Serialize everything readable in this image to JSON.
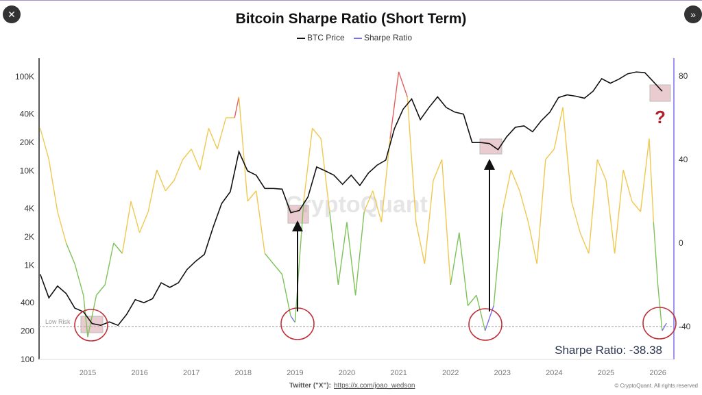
{
  "nav": {
    "close_icon": "close-icon",
    "next_icon": "chevron-double-right-icon"
  },
  "chart_data": {
    "type": "line",
    "title": "Bitcoin Sharpe Ratio (Short Term)",
    "legend": [
      "BTC Price",
      "Sharpe Ratio"
    ],
    "legend_placement": "top-center",
    "x_ticks": [
      "2015",
      "2016",
      "2017",
      "2018",
      "2019",
      "2020",
      "2021",
      "2022",
      "2023",
      "2024",
      "2025",
      "2026"
    ],
    "y_left": {
      "scale": "log",
      "ticks": [
        "100",
        "200",
        "400",
        "1K",
        "2K",
        "4K",
        "10K",
        "20K",
        "40K",
        "100K"
      ],
      "range": [
        100,
        200000
      ]
    },
    "y_right": {
      "ticks": [
        "80",
        "40",
        "0",
        "-40"
      ],
      "range": [
        -55,
        89
      ]
    },
    "colors": {
      "price": "#111111",
      "high": "#e06060",
      "mid": "#f0c850",
      "low": "#7cc35a",
      "extreme": "#7a6ef0",
      "axis_right": "#7a6ef0",
      "annotation": "#c0303a"
    },
    "series": [
      {
        "name": "BTC Price",
        "points": [
          [
            "2014-02",
            800
          ],
          [
            "2014-04",
            450
          ],
          [
            "2014-06",
            600
          ],
          [
            "2014-08",
            500
          ],
          [
            "2014-10",
            350
          ],
          [
            "2014-12",
            320
          ],
          [
            "2015-02",
            240
          ],
          [
            "2015-04",
            230
          ],
          [
            "2015-06",
            250
          ],
          [
            "2015-08",
            230
          ],
          [
            "2015-10",
            300
          ],
          [
            "2015-12",
            430
          ],
          [
            "2016-02",
            400
          ],
          [
            "2016-04",
            440
          ],
          [
            "2016-06",
            650
          ],
          [
            "2016-08",
            580
          ],
          [
            "2016-10",
            650
          ],
          [
            "2016-12",
            900
          ],
          [
            "2017-02",
            1100
          ],
          [
            "2017-04",
            1300
          ],
          [
            "2017-06",
            2500
          ],
          [
            "2017-08",
            4500
          ],
          [
            "2017-10",
            6000
          ],
          [
            "2017-12",
            16000
          ],
          [
            "2018-02",
            10000
          ],
          [
            "2018-04",
            9000
          ],
          [
            "2018-06",
            6500
          ],
          [
            "2018-08",
            6500
          ],
          [
            "2018-10",
            6400
          ],
          [
            "2018-12",
            3600
          ],
          [
            "2019-02",
            3800
          ],
          [
            "2019-04",
            5300
          ],
          [
            "2019-06",
            11000
          ],
          [
            "2019-08",
            10000
          ],
          [
            "2019-10",
            9000
          ],
          [
            "2019-12",
            7200
          ],
          [
            "2020-02",
            9000
          ],
          [
            "2020-04",
            7000
          ],
          [
            "2020-06",
            9500
          ],
          [
            "2020-08",
            11500
          ],
          [
            "2020-10",
            13000
          ],
          [
            "2020-12",
            28000
          ],
          [
            "2021-02",
            45000
          ],
          [
            "2021-04",
            58000
          ],
          [
            "2021-06",
            35000
          ],
          [
            "2021-08",
            47000
          ],
          [
            "2021-10",
            61000
          ],
          [
            "2021-12",
            47000
          ],
          [
            "2022-02",
            42000
          ],
          [
            "2022-04",
            40000
          ],
          [
            "2022-06",
            20000
          ],
          [
            "2022-08",
            20000
          ],
          [
            "2022-10",
            19500
          ],
          [
            "2022-12",
            16800
          ],
          [
            "2023-02",
            23000
          ],
          [
            "2023-04",
            29000
          ],
          [
            "2023-06",
            30000
          ],
          [
            "2023-08",
            26000
          ],
          [
            "2023-10",
            34000
          ],
          [
            "2023-12",
            42000
          ],
          [
            "2024-02",
            60000
          ],
          [
            "2024-04",
            64000
          ],
          [
            "2024-06",
            62000
          ],
          [
            "2024-08",
            59000
          ],
          [
            "2024-10",
            70000
          ],
          [
            "2024-12",
            95000
          ],
          [
            "2025-02",
            85000
          ],
          [
            "2025-04",
            94000
          ],
          [
            "2025-06",
            107000
          ],
          [
            "2025-08",
            112000
          ],
          [
            "2025-10",
            110000
          ],
          [
            "2025-12",
            88000
          ],
          [
            "2026-02",
            70000
          ]
        ]
      },
      {
        "name": "Sharpe Ratio",
        "points": [
          [
            "2014-02",
            55
          ],
          [
            "2014-04",
            40
          ],
          [
            "2014-06",
            15
          ],
          [
            "2014-08",
            0
          ],
          [
            "2014-10",
            -10
          ],
          [
            "2014-12",
            -25
          ],
          [
            "2015-01",
            -45
          ],
          [
            "2015-03",
            -25
          ],
          [
            "2015-05",
            -20
          ],
          [
            "2015-07",
            0
          ],
          [
            "2015-09",
            -5
          ],
          [
            "2015-11",
            20
          ],
          [
            "2016-01",
            5
          ],
          [
            "2016-03",
            15
          ],
          [
            "2016-05",
            35
          ],
          [
            "2016-07",
            25
          ],
          [
            "2016-09",
            30
          ],
          [
            "2016-11",
            40
          ],
          [
            "2017-01",
            45
          ],
          [
            "2017-03",
            35
          ],
          [
            "2017-05",
            55
          ],
          [
            "2017-07",
            45
          ],
          [
            "2017-09",
            60
          ],
          [
            "2017-11",
            60
          ],
          [
            "2017-12",
            70
          ],
          [
            "2018-02",
            20
          ],
          [
            "2018-04",
            25
          ],
          [
            "2018-06",
            -5
          ],
          [
            "2018-08",
            -10
          ],
          [
            "2018-10",
            -15
          ],
          [
            "2018-12",
            -35
          ],
          [
            "2019-01",
            -38
          ],
          [
            "2019-03",
            20
          ],
          [
            "2019-05",
            55
          ],
          [
            "2019-07",
            50
          ],
          [
            "2019-09",
            15
          ],
          [
            "2019-11",
            -20
          ],
          [
            "2020-01",
            10
          ],
          [
            "2020-03",
            -25
          ],
          [
            "2020-05",
            15
          ],
          [
            "2020-07",
            25
          ],
          [
            "2020-09",
            10
          ],
          [
            "2020-11",
            50
          ],
          [
            "2021-01",
            82
          ],
          [
            "2021-03",
            70
          ],
          [
            "2021-05",
            10
          ],
          [
            "2021-07",
            -10
          ],
          [
            "2021-09",
            30
          ],
          [
            "2021-11",
            40
          ],
          [
            "2022-01",
            -20
          ],
          [
            "2022-03",
            5
          ],
          [
            "2022-05",
            -30
          ],
          [
            "2022-07",
            -25
          ],
          [
            "2022-09",
            -42
          ],
          [
            "2022-11",
            -30
          ],
          [
            "2023-01",
            15
          ],
          [
            "2023-03",
            35
          ],
          [
            "2023-05",
            25
          ],
          [
            "2023-07",
            10
          ],
          [
            "2023-09",
            -10
          ],
          [
            "2023-11",
            40
          ],
          [
            "2024-01",
            45
          ],
          [
            "2024-03",
            65
          ],
          [
            "2024-05",
            20
          ],
          [
            "2024-07",
            5
          ],
          [
            "2024-09",
            -5
          ],
          [
            "2024-11",
            40
          ],
          [
            "2025-01",
            30
          ],
          [
            "2025-03",
            -5
          ],
          [
            "2025-05",
            35
          ],
          [
            "2025-07",
            20
          ],
          [
            "2025-09",
            15
          ],
          [
            "2025-11",
            50
          ],
          [
            "2025-12",
            10
          ],
          [
            "2026-01",
            -20
          ],
          [
            "2026-02",
            -42
          ],
          [
            "2026-03",
            -38.38
          ]
        ]
      }
    ],
    "annotations": {
      "low_risk_label": "Low Risk",
      "low_risk_level": -40,
      "current_label": "Sharpe Ratio: -38.38",
      "question_mark": "?",
      "watermark": "CryptoQuant"
    }
  },
  "footer": {
    "twitter_label": "Twitter (\"X\"):",
    "twitter_link": "https://x.com/joao_wedson",
    "copyright": "© CryptoQuant. All rights reserved"
  }
}
